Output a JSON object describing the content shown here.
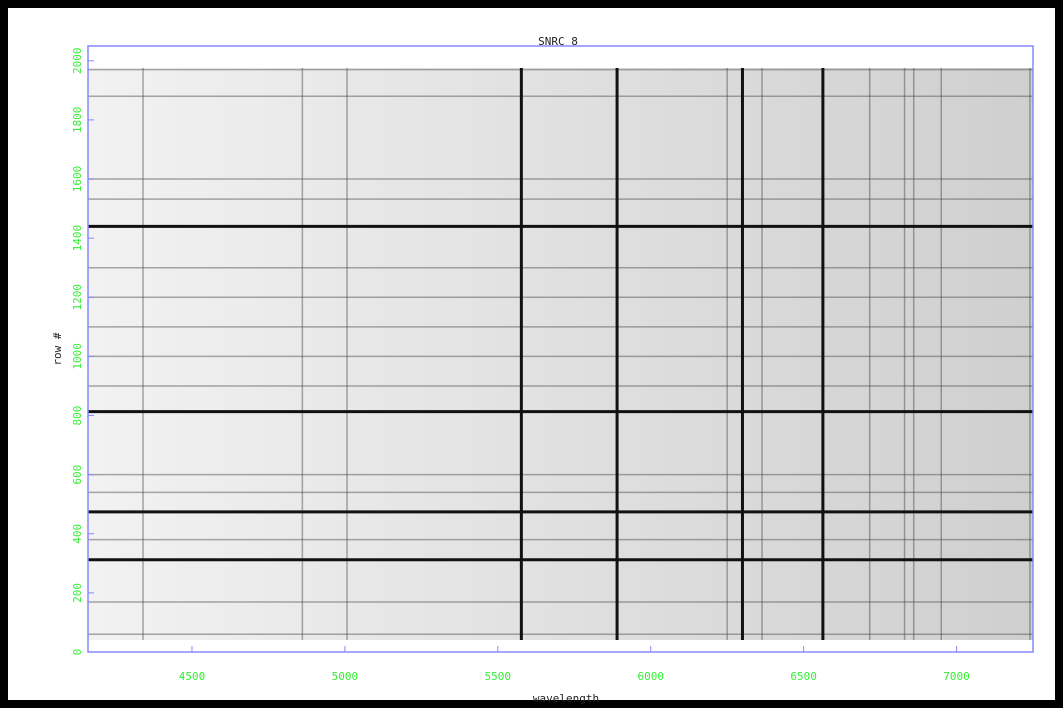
{
  "chart_data": {
    "type": "image",
    "title": "SNRC 8",
    "xlabel": "wavelength",
    "ylabel": "row #",
    "xlim": [
      4160,
      7250
    ],
    "ylim": [
      0,
      2050
    ],
    "xticks": [
      4500,
      5000,
      5500,
      6000,
      6500,
      7000
    ],
    "yticks": [
      0,
      200,
      400,
      600,
      800,
      1000,
      1200,
      1400,
      1600,
      1800,
      2000
    ],
    "tick_color": "#33ee33",
    "frame_color": "#8888ff",
    "vertical_lines": [
      4340,
      4861,
      5007,
      5577,
      5890,
      6250,
      6300,
      6364,
      6563,
      6716,
      6830,
      6860,
      6950,
      7240
    ],
    "horizontal_lines": [
      60,
      169,
      312,
      380,
      474,
      540,
      600,
      813,
      900,
      1000,
      1100,
      1200,
      1300,
      1440,
      1532,
      1600,
      1880,
      1970
    ],
    "strong_vertical_lines": [
      5577,
      5890,
      6300,
      6563
    ],
    "strong_horizontal_lines": [
      312,
      474,
      813,
      1440
    ]
  }
}
